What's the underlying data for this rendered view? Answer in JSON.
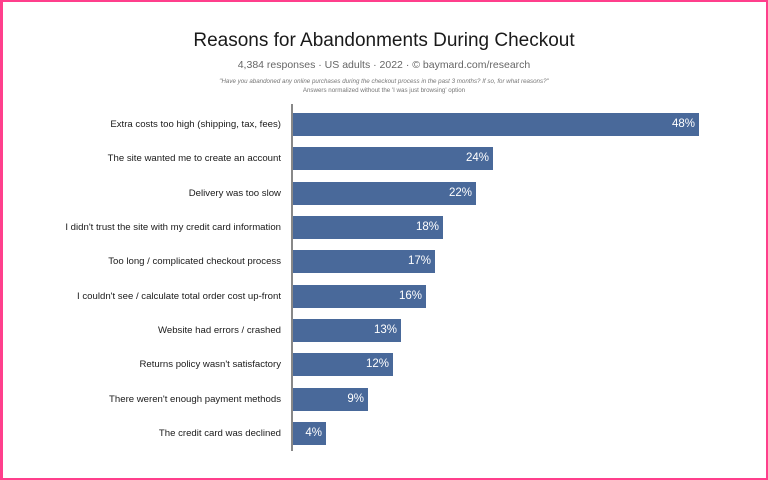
{
  "chart_data": {
    "type": "bar",
    "orientation": "horizontal",
    "title": "Reasons for Abandonments During Checkout",
    "subtitle": "4,384 responses  ·  US adults  ·  2022  ·  © baymard.com/research",
    "note_question": "\"Have you abandoned any online purchases during the checkout process in the past 3 months? If so, for what reasons?\"",
    "note_normalization": "Answers normalized without the 'I was just browsing' option",
    "xlabel": "",
    "ylabel": "",
    "grid": false,
    "legend": null,
    "bar_color": "#49699a",
    "value_suffix": "%",
    "categories": [
      "Extra costs too high (shipping, tax, fees)",
      "The site wanted me to create an account",
      "Delivery was too slow",
      "I didn't trust the site with my credit card information",
      "Too long / complicated checkout process",
      "I couldn't see / calculate total order cost up-front",
      "Website had errors / crashed",
      "Returns policy wasn't satisfactory",
      "There weren't enough payment methods",
      "The credit card was declined"
    ],
    "values": [
      48,
      24,
      22,
      18,
      17,
      16,
      13,
      12,
      9,
      4
    ],
    "value_labels": [
      "48%",
      "24%",
      "22%",
      "18%",
      "17%",
      "16%",
      "13%",
      "12%",
      "9%",
      "4%"
    ],
    "xlim": [
      0,
      48
    ]
  },
  "frame": {
    "border_color": "#ff3f8c"
  }
}
